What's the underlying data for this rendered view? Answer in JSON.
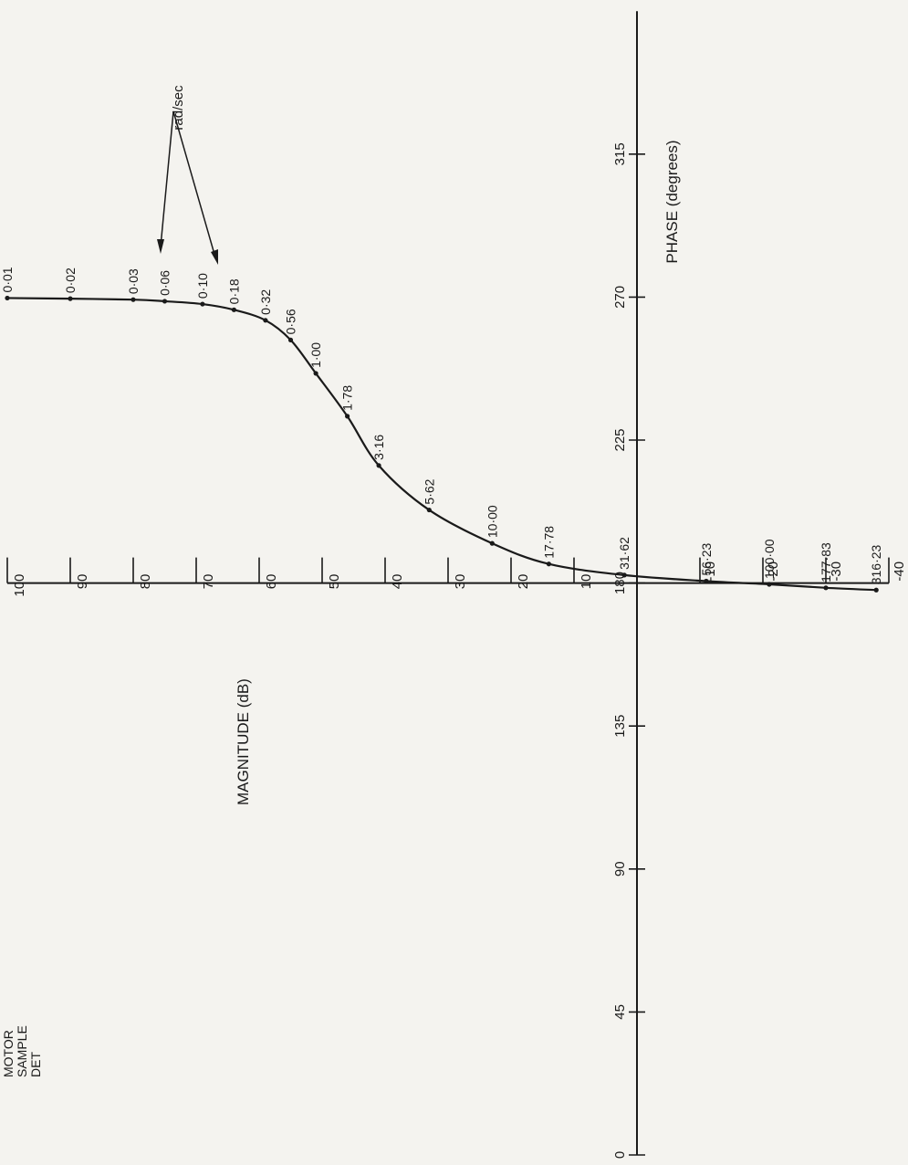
{
  "chart_data": {
    "type": "line",
    "title": "",
    "xlabel": "PHASE (degrees)",
    "ylabel": "MAGNITUDE (dB)",
    "xlim": [
      0,
      360
    ],
    "ylim": [
      -40,
      100
    ],
    "x_ticks": [
      "0",
      "45",
      "90",
      "135",
      "180",
      "225",
      "270",
      "315"
    ],
    "y_ticks": [
      "100",
      "90",
      "80",
      "70",
      "60",
      "50",
      "40",
      "30",
      "20",
      "10",
      "-10",
      "-20",
      "-30",
      "-40"
    ],
    "unit_label": "rad/sec",
    "series": [
      {
        "points": [
          {
            "freq": "0·01",
            "phase": 269.7,
            "mag": 100
          },
          {
            "freq": "0·02",
            "phase": 269.5,
            "mag": 90
          },
          {
            "freq": "0·03",
            "phase": 269.2,
            "mag": 80
          },
          {
            "freq": "0·06",
            "phase": 268.7,
            "mag": 75
          },
          {
            "freq": "0·10",
            "phase": 267.8,
            "mag": 69
          },
          {
            "freq": "0·18",
            "phase": 266.0,
            "mag": 64
          },
          {
            "freq": "0·32",
            "phase": 262.7,
            "mag": 59
          },
          {
            "freq": "0·56",
            "phase": 256.5,
            "mag": 55
          },
          {
            "freq": "1·00",
            "phase": 246.0,
            "mag": 51
          },
          {
            "freq": "1·78",
            "phase": 232.5,
            "mag": 46
          },
          {
            "freq": "3·16",
            "phase": 217.0,
            "mag": 41
          },
          {
            "freq": "5·62",
            "phase": 203.0,
            "mag": 33
          },
          {
            "freq": "10·00",
            "phase": 192.5,
            "mag": 23
          },
          {
            "freq": "17·78",
            "phase": 186.0,
            "mag": 14
          },
          {
            "freq": "31·62",
            "phase": 182.5,
            "mag": 2
          },
          {
            "freq": "56·23",
            "phase": 180.6,
            "mag": -11
          },
          {
            "freq": "100·00",
            "phase": 179.6,
            "mag": -21
          },
          {
            "freq": "177·83",
            "phase": 178.5,
            "mag": -30
          },
          {
            "freq": "316·23",
            "phase": 177.8,
            "mag": -38
          }
        ]
      }
    ],
    "annotations": [
      "MOTOR",
      "SAMPLE",
      "DET"
    ]
  }
}
